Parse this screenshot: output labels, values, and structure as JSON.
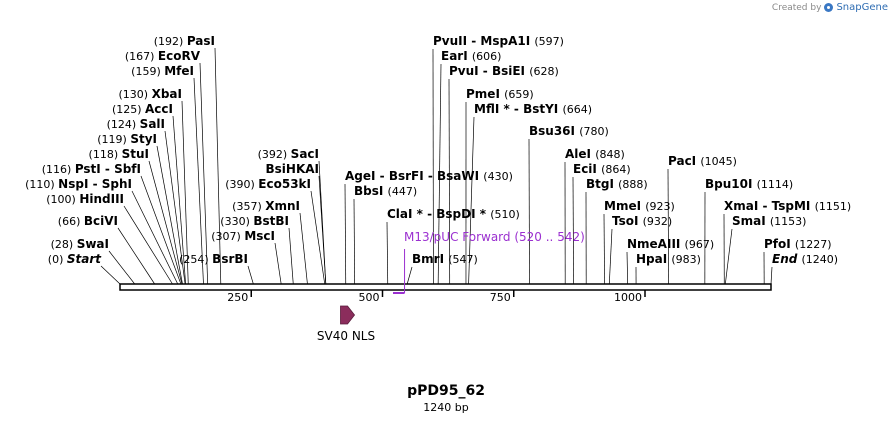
{
  "credit": {
    "prefix": "Created by",
    "brand": "SnapGene"
  },
  "plasmid": {
    "name": "pPD95_62",
    "size": "1240 bp",
    "length": 1240
  },
  "axis": {
    "ticks": [
      {
        "pos": 250,
        "label": "250"
      },
      {
        "pos": 500,
        "label": "500"
      },
      {
        "pos": 750,
        "label": "750"
      },
      {
        "pos": 1000,
        "label": "1000"
      }
    ]
  },
  "sites": [
    {
      "name": "Start",
      "pos": "(0)",
      "bp": 0,
      "style": "ital"
    },
    {
      "name": "SwaI",
      "pos": "(28)",
      "bp": 28
    },
    {
      "name": "BciVI",
      "pos": "(66)",
      "bp": 66
    },
    {
      "name": "HindIII",
      "pos": "(100)",
      "bp": 100
    },
    {
      "name": "NspI - SphI",
      "pos": "(110)",
      "bp": 110
    },
    {
      "name": "PstI - SbfI",
      "pos": "(116)",
      "bp": 116
    },
    {
      "name": "StuI",
      "pos": "(118)",
      "bp": 118
    },
    {
      "name": "StyI",
      "pos": "(119)",
      "bp": 119
    },
    {
      "name": "SalI",
      "pos": "(124)",
      "bp": 124
    },
    {
      "name": "AccI",
      "pos": "(125)",
      "bp": 125
    },
    {
      "name": "XbaI",
      "pos": "(130)",
      "bp": 130
    },
    {
      "name": "MfeI",
      "pos": "(159)",
      "bp": 159
    },
    {
      "name": "EcoRV",
      "pos": "(167)",
      "bp": 167
    },
    {
      "name": "PasI",
      "pos": "(192)",
      "bp": 192
    },
    {
      "name": "BsrBI",
      "pos": "(254)",
      "bp": 254
    },
    {
      "name": "MscI",
      "pos": "(307)",
      "bp": 307
    },
    {
      "name": "BstBI",
      "pos": "(330)",
      "bp": 330
    },
    {
      "name": "XmnI",
      "pos": "(357)",
      "bp": 357
    },
    {
      "name": "Eco53kI",
      "pos": "(390)",
      "bp": 390
    },
    {
      "name": "BsiHKAI",
      "pos": "",
      "bp": 392
    },
    {
      "name": "SacI",
      "pos": "(392)",
      "bp": 392
    },
    {
      "name": "AgeI - BsrFI - BsaWI",
      "pos": "(430)",
      "bp": 430
    },
    {
      "name": "BbsI",
      "pos": "(447)",
      "bp": 447
    },
    {
      "name": "ClaI * - BspDI *",
      "pos": "(510)",
      "bp": 510
    },
    {
      "name": "BmrI",
      "pos": "(547)",
      "bp": 547
    },
    {
      "name": "PvuII - MspA1I",
      "pos": "(597)",
      "bp": 597
    },
    {
      "name": "EarI",
      "pos": "(606)",
      "bp": 606
    },
    {
      "name": "PvuI - BsiEI",
      "pos": "(628)",
      "bp": 628
    },
    {
      "name": "PmeI",
      "pos": "(659)",
      "bp": 659
    },
    {
      "name": "MflI * - BstYI",
      "pos": "(664)",
      "bp": 664
    },
    {
      "name": "Bsu36I",
      "pos": "(780)",
      "bp": 780
    },
    {
      "name": "AleI",
      "pos": "(848)",
      "bp": 848
    },
    {
      "name": "EciI",
      "pos": "(864)",
      "bp": 864
    },
    {
      "name": "BtgI",
      "pos": "(888)",
      "bp": 888
    },
    {
      "name": "MmeI",
      "pos": "(923)",
      "bp": 923
    },
    {
      "name": "TsoI",
      "pos": "(932)",
      "bp": 932
    },
    {
      "name": "NmeAIII",
      "pos": "(967)",
      "bp": 967
    },
    {
      "name": "HpaI",
      "pos": "(983)",
      "bp": 983
    },
    {
      "name": "PacI",
      "pos": "(1045)",
      "bp": 1045
    },
    {
      "name": "Bpu10I",
      "pos": "(1114)",
      "bp": 1114
    },
    {
      "name": "XmaI - TspMI",
      "pos": "(1151)",
      "bp": 1151
    },
    {
      "name": "SmaI",
      "pos": "(1153)",
      "bp": 1153
    },
    {
      "name": "PfoI",
      "pos": "(1227)",
      "bp": 1227
    },
    {
      "name": "End",
      "pos": "(1240)",
      "bp": 1240,
      "style": "ital"
    }
  ],
  "primer": {
    "name": "M13/pUC Forward",
    "range": "(520 .. 542)",
    "start": 520,
    "end": 542,
    "color": "#9b30d0"
  },
  "feature": {
    "name": "SV40 NLS",
    "start": 420,
    "end": 441,
    "color": "#8b2d5c"
  },
  "colors": {
    "backbone": "#000000",
    "primer": "#9b30d0",
    "feature": "#8b2d5c"
  }
}
